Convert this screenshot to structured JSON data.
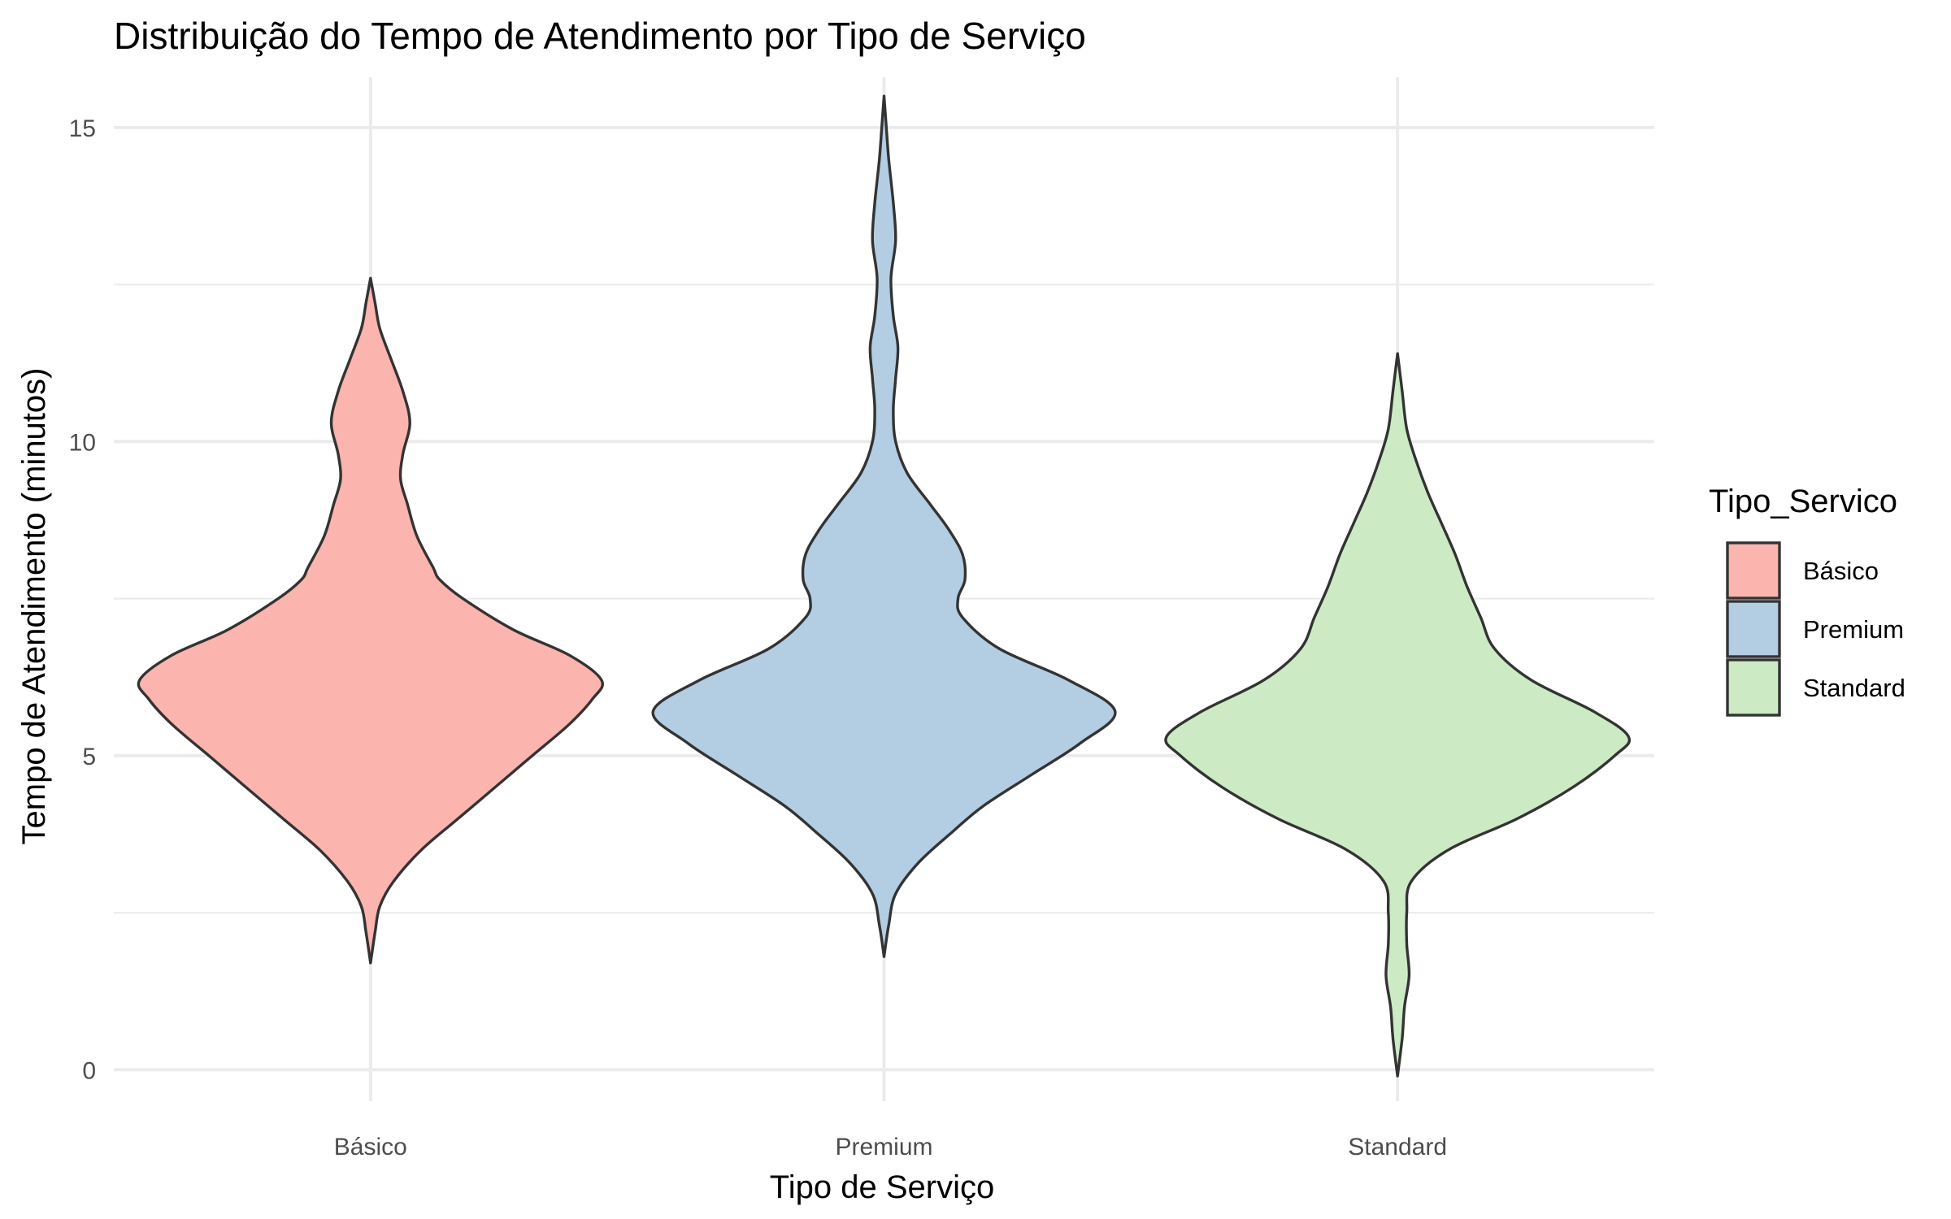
{
  "chart_data": {
    "type": "violin",
    "title": "Distribuição do Tempo de Atendimento por Tipo de Serviço",
    "xlabel": "Tipo de Serviço",
    "ylabel": "Tempo de Atendimento (minutos)",
    "ylim": [
      -0.5,
      15.8
    ],
    "y_ticks": [
      0,
      5,
      10,
      15
    ],
    "grid": true,
    "legend": {
      "title": "Tipo_Servico",
      "position": "right",
      "entries": [
        "Básico",
        "Premium",
        "Standard"
      ]
    },
    "categories": [
      "Básico",
      "Premium",
      "Standard"
    ],
    "series": [
      {
        "name": "Básico",
        "color": "#FBB4AE",
        "y_min": 1.7,
        "y_max": 12.6,
        "density_profile": [
          [
            1.7,
            0.0
          ],
          [
            2.2,
            0.02
          ],
          [
            2.6,
            0.04
          ],
          [
            3.0,
            0.1
          ],
          [
            3.5,
            0.22
          ],
          [
            4.0,
            0.38
          ],
          [
            4.5,
            0.54
          ],
          [
            5.0,
            0.7
          ],
          [
            5.5,
            0.86
          ],
          [
            5.9,
            0.96
          ],
          [
            6.2,
            1.0
          ],
          [
            6.6,
            0.86
          ],
          [
            7.0,
            0.62
          ],
          [
            7.5,
            0.4
          ],
          [
            7.8,
            0.3
          ],
          [
            8.0,
            0.27
          ],
          [
            8.5,
            0.2
          ],
          [
            9.0,
            0.16
          ],
          [
            9.4,
            0.13
          ],
          [
            9.8,
            0.14
          ],
          [
            10.3,
            0.17
          ],
          [
            10.8,
            0.14
          ],
          [
            11.3,
            0.09
          ],
          [
            11.8,
            0.04
          ],
          [
            12.2,
            0.02
          ],
          [
            12.6,
            0.0
          ]
        ]
      },
      {
        "name": "Premium",
        "color": "#B3CDE3",
        "y_min": 1.8,
        "y_max": 15.5,
        "density_profile": [
          [
            1.8,
            0.0
          ],
          [
            2.3,
            0.02
          ],
          [
            2.8,
            0.05
          ],
          [
            3.3,
            0.15
          ],
          [
            3.8,
            0.3
          ],
          [
            4.2,
            0.43
          ],
          [
            4.7,
            0.64
          ],
          [
            5.2,
            0.85
          ],
          [
            5.7,
            1.0
          ],
          [
            6.2,
            0.8
          ],
          [
            6.7,
            0.5
          ],
          [
            7.2,
            0.34
          ],
          [
            7.5,
            0.32
          ],
          [
            7.8,
            0.35
          ],
          [
            8.2,
            0.34
          ],
          [
            8.6,
            0.28
          ],
          [
            9.0,
            0.2
          ],
          [
            9.5,
            0.1
          ],
          [
            10.0,
            0.05
          ],
          [
            10.5,
            0.04
          ],
          [
            11.0,
            0.05
          ],
          [
            11.5,
            0.06
          ],
          [
            12.0,
            0.04
          ],
          [
            12.6,
            0.03
          ],
          [
            13.2,
            0.05
          ],
          [
            13.8,
            0.04
          ],
          [
            14.5,
            0.02
          ],
          [
            15.0,
            0.01
          ],
          [
            15.5,
            0.0
          ]
        ]
      },
      {
        "name": "Standard",
        "color": "#CCEBC5",
        "y_min": -0.1,
        "y_max": 11.4,
        "density_profile": [
          [
            -0.1,
            0.0
          ],
          [
            0.5,
            0.02
          ],
          [
            1.0,
            0.03
          ],
          [
            1.5,
            0.05
          ],
          [
            2.0,
            0.04
          ],
          [
            2.5,
            0.04
          ],
          [
            3.0,
            0.06
          ],
          [
            3.5,
            0.22
          ],
          [
            4.0,
            0.52
          ],
          [
            4.5,
            0.76
          ],
          [
            5.0,
            0.94
          ],
          [
            5.3,
            1.0
          ],
          [
            5.7,
            0.85
          ],
          [
            6.2,
            0.58
          ],
          [
            6.7,
            0.42
          ],
          [
            7.2,
            0.36
          ],
          [
            7.7,
            0.3
          ],
          [
            8.2,
            0.25
          ],
          [
            8.7,
            0.19
          ],
          [
            9.2,
            0.13
          ],
          [
            9.7,
            0.08
          ],
          [
            10.2,
            0.04
          ],
          [
            10.8,
            0.02
          ],
          [
            11.4,
            0.0
          ]
        ]
      }
    ]
  }
}
